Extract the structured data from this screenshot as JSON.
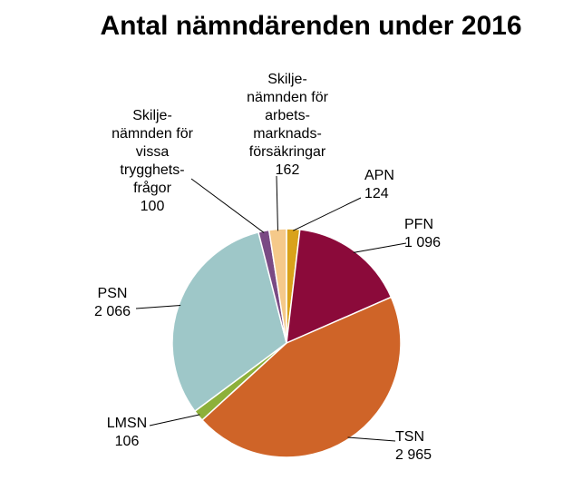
{
  "chart_data": {
    "type": "pie",
    "title": "Antal nämndärenden under 2016",
    "slices": [
      {
        "key": "apn",
        "label_lines": [
          "APN"
        ],
        "value": 124,
        "value_label": "124",
        "color": "#D9A21B"
      },
      {
        "key": "pfn",
        "label_lines": [
          "PFN"
        ],
        "value": 1096,
        "value_label": "1 096",
        "color": "#8B0A3A"
      },
      {
        "key": "tsn",
        "label_lines": [
          "TSN"
        ],
        "value": 2965,
        "value_label": "2 965",
        "color": "#CF6428"
      },
      {
        "key": "lmsn",
        "label_lines": [
          "LMSN"
        ],
        "value": 106,
        "value_label": "106",
        "color": "#8DB03A"
      },
      {
        "key": "psn",
        "label_lines": [
          "PSN"
        ],
        "value": 2066,
        "value_label": "2 066",
        "color": "#9EC7C8"
      },
      {
        "key": "svtf",
        "label_lines": [
          "Skilje-",
          "nämnden för",
          "vissa",
          "trygghets-",
          "frågor"
        ],
        "value": 100,
        "value_label": "100",
        "color": "#7A4A84"
      },
      {
        "key": "safk",
        "label_lines": [
          "Skilje-",
          "nämnden för",
          "arbets-",
          "marknads-",
          "försäkringar"
        ],
        "value": 162,
        "value_label": "162",
        "color": "#F5C98A"
      }
    ]
  }
}
